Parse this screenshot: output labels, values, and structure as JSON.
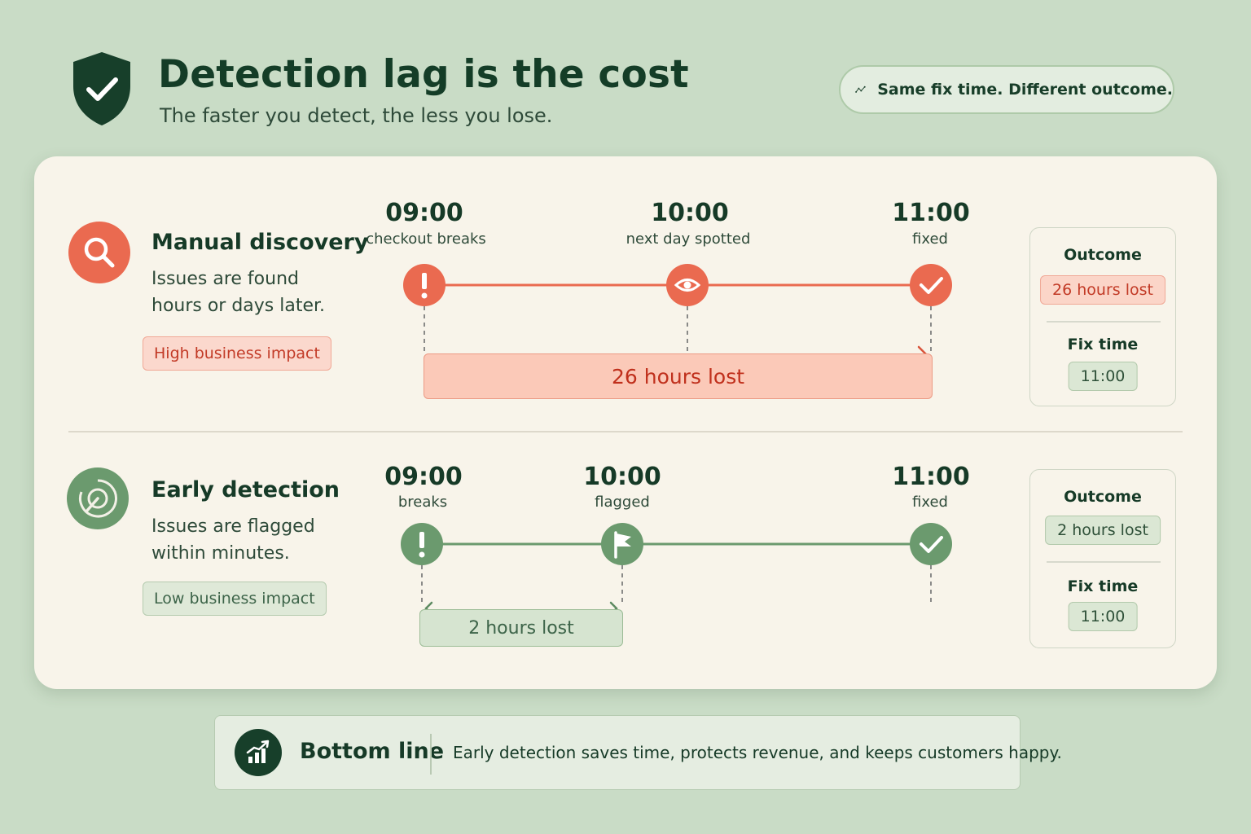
{
  "header": {
    "title": "Detection lag is the cost",
    "subtitle": "The faster you detect, the less you lose.",
    "pill_text": "Same fix time. Different outcome."
  },
  "rows": [
    {
      "title": "Manual discovery",
      "description": "Issues are found hours or days later.",
      "impact": "High business impact",
      "events": [
        {
          "time": "09:00",
          "label": "checkout breaks",
          "icon": "alert-icon"
        },
        {
          "time": "10:00",
          "label": "next day spotted",
          "icon": "eye-icon"
        },
        {
          "time": "11:00",
          "label": "fixed",
          "icon": "check-icon"
        }
      ],
      "lost": "26 hours lost",
      "outcome": {
        "label": "Outcome",
        "value": "26 hours lost",
        "fix_label": "Fix time",
        "fix_value": "11:00"
      },
      "color": "#ea6a50"
    },
    {
      "title": "Early detection",
      "description": "Issues are flagged within minutes.",
      "impact": "Low business impact",
      "events": [
        {
          "time": "09:00",
          "label": "breaks",
          "icon": "alert-icon"
        },
        {
          "time": "10:00",
          "label": "flagged",
          "icon": "flag-icon"
        },
        {
          "time": "11:00",
          "label": "fixed",
          "icon": "check-icon"
        }
      ],
      "lost": "2 hours lost",
      "outcome": {
        "label": "Outcome",
        "value": "2 hours lost",
        "fix_label": "Fix time",
        "fix_value": "11:00"
      },
      "color": "#6b9a6e"
    }
  ],
  "bottom": {
    "title": "Bottom line",
    "text": "Early detection saves time, protects revenue, and keeps customers happy."
  },
  "colors": {
    "background": "#c9dcc6",
    "card": "#f8f4ea",
    "dark_green": "#173f2a",
    "red_accent": "#ea6a50",
    "green_accent": "#6b9a6e"
  }
}
